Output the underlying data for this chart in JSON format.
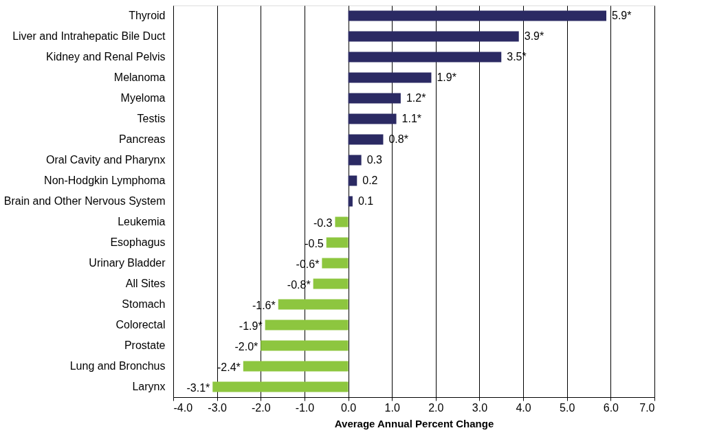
{
  "chart_data": {
    "type": "bar",
    "orientation": "horizontal",
    "xlabel": "Average Annual Percent Change",
    "categories": [
      "Thyroid",
      "Liver and Intrahepatic Bile Duct",
      "Kidney and Renal Pelvis",
      "Melanoma",
      "Myeloma",
      "Testis",
      "Pancreas",
      "Oral Cavity and Pharynx",
      "Non-Hodgkin Lymphoma",
      "Brain and Other Nervous System",
      "Leukemia",
      "Esophagus",
      "Urinary Bladder",
      "All Sites",
      "Stomach",
      "Colorectal",
      "Prostate",
      "Lung and Bronchus",
      "Larynx"
    ],
    "values": [
      5.9,
      3.9,
      3.5,
      1.9,
      1.2,
      1.1,
      0.8,
      0.3,
      0.2,
      0.1,
      -0.3,
      -0.5,
      -0.6,
      -0.8,
      -1.6,
      -1.9,
      -2.0,
      -2.4,
      -3.1
    ],
    "value_labels": [
      "5.9*",
      "3.9*",
      "3.5*",
      "1.9*",
      "1.2*",
      "1.1*",
      "0.8*",
      "0.3",
      "0.2",
      "0.1",
      "-0.3",
      "-0.5",
      "-0.6*",
      "-0.8*",
      "-1.6*",
      "-1.9*",
      "-2.0*",
      "-2.4*",
      "-3.1*"
    ],
    "colors": [
      "#2b2a63",
      "#2b2a63",
      "#2b2a63",
      "#2b2a63",
      "#2b2a63",
      "#2b2a63",
      "#2b2a63",
      "#2b2a63",
      "#2b2a63",
      "#2b2a63",
      "#8dc63f",
      "#8dc63f",
      "#8dc63f",
      "#8dc63f",
      "#8dc63f",
      "#8dc63f",
      "#8dc63f",
      "#8dc63f",
      "#8dc63f"
    ],
    "xlim": [
      -4,
      7
    ],
    "xticks": [
      {
        "value": -4,
        "label": "-4.0"
      },
      {
        "value": -3,
        "label": "-3.0"
      },
      {
        "value": -2,
        "label": "-2.0"
      },
      {
        "value": -1,
        "label": "-1.0"
      },
      {
        "value": 0,
        "label": "0.0"
      },
      {
        "value": 1,
        "label": "1.0"
      },
      {
        "value": 2,
        "label": "2.0"
      },
      {
        "value": 3,
        "label": "3.0"
      },
      {
        "value": 4,
        "label": "4.0"
      },
      {
        "value": 5,
        "label": "5.0"
      },
      {
        "value": 6,
        "label": "6.0"
      },
      {
        "value": 7,
        "label": "7.0"
      }
    ],
    "grid": "x"
  }
}
